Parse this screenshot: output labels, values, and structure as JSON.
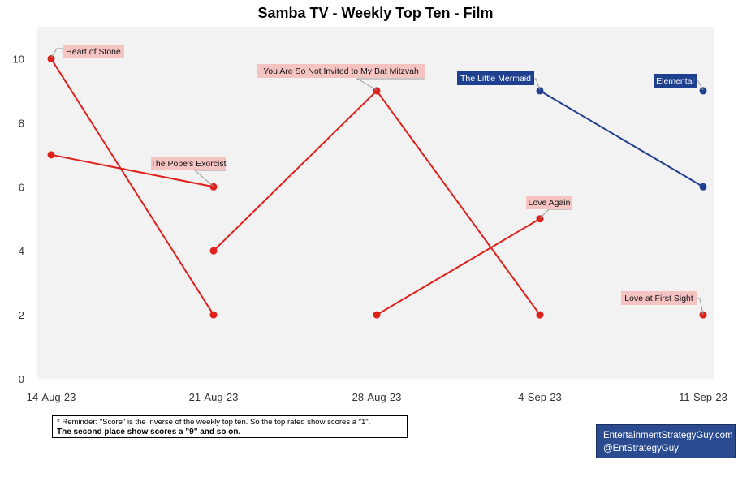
{
  "title": "Samba TV - Weekly Top Ten - Film",
  "footnote": {
    "line1": "* Reminder: \"Score\" is the inverse of the weekly top ten. So the top rated show scores a \"1\".",
    "line2": "The second place show scores a \"9\" and so on."
  },
  "credit": {
    "site": "EntertainmentStrategyGuy.com",
    "handle": "@EntStrategyGuy"
  },
  "colors": {
    "red": "#e0201b",
    "blue": "#1f3f8f",
    "label_red_bg": "#f6c3c3",
    "label_blue_bg": "#1f3f8f",
    "plot_bg": "#f2f2f2"
  },
  "chart_data": {
    "type": "line",
    "title": "Samba TV - Weekly Top Ten - Film",
    "xlabel": "",
    "ylabel": "",
    "categories": [
      "14-Aug-23",
      "21-Aug-23",
      "28-Aug-23",
      "4-Sep-23",
      "11-Sep-23"
    ],
    "ylim": [
      0,
      11
    ],
    "yticks": [
      0,
      2,
      4,
      6,
      8,
      10
    ],
    "grid": false,
    "series": [
      {
        "name": "Heart of Stone",
        "color": "red",
        "points": [
          [
            0,
            10
          ],
          [
            1,
            2
          ]
        ],
        "label_at": 0
      },
      {
        "name": "The Pope's Exorcist",
        "color": "red",
        "points": [
          [
            0,
            7
          ],
          [
            1,
            6
          ]
        ],
        "label_at": 1
      },
      {
        "name": "You Are So Not Invited to My Bat Mitzvah",
        "color": "red",
        "points": [
          [
            1,
            4
          ],
          [
            2,
            9
          ],
          [
            3,
            2
          ]
        ],
        "label_at": 2
      },
      {
        "name": "Love Again",
        "color": "red",
        "points": [
          [
            2,
            2
          ],
          [
            3,
            5
          ]
        ],
        "label_at": 3
      },
      {
        "name": "The Little Mermaid",
        "color": "blue",
        "points": [
          [
            3,
            9
          ],
          [
            4,
            6
          ]
        ],
        "label_at": 3
      },
      {
        "name": "Elemental",
        "color": "blue",
        "points": [
          [
            4,
            9
          ]
        ],
        "label_at": 4
      },
      {
        "name": "Love at First Sight",
        "color": "red",
        "points": [
          [
            4,
            2
          ]
        ],
        "label_at": 4
      }
    ]
  }
}
